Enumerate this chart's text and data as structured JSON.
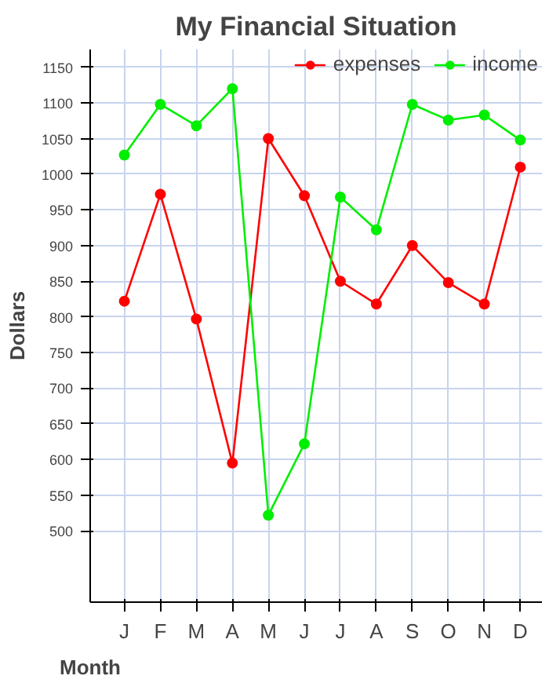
{
  "chart_data": {
    "type": "line",
    "title": "My Financial Situation",
    "xlabel": "Month",
    "ylabel": "Dollars",
    "categories": [
      "J",
      "F",
      "M",
      "A",
      "M",
      "J",
      "J",
      "A",
      "S",
      "O",
      "N",
      "D"
    ],
    "series": [
      {
        "name": "expenses",
        "color": "#ff0000",
        "values": [
          822,
          972,
          797,
          595,
          1050,
          970,
          850,
          818,
          900,
          848,
          818,
          1010
        ]
      },
      {
        "name": "income",
        "color": "#00ee00",
        "values": [
          1027,
          1098,
          1068,
          1120,
          522,
          622,
          968,
          922,
          1098,
          1076,
          1083,
          1048
        ]
      }
    ],
    "ylim": [
      400,
      1175
    ],
    "yticks": [
      500,
      550,
      600,
      650,
      700,
      750,
      800,
      850,
      900,
      950,
      1000,
      1050,
      1100,
      1150
    ],
    "grid": true,
    "legend": "top right",
    "marker": "circle",
    "line_style": "solid"
  }
}
